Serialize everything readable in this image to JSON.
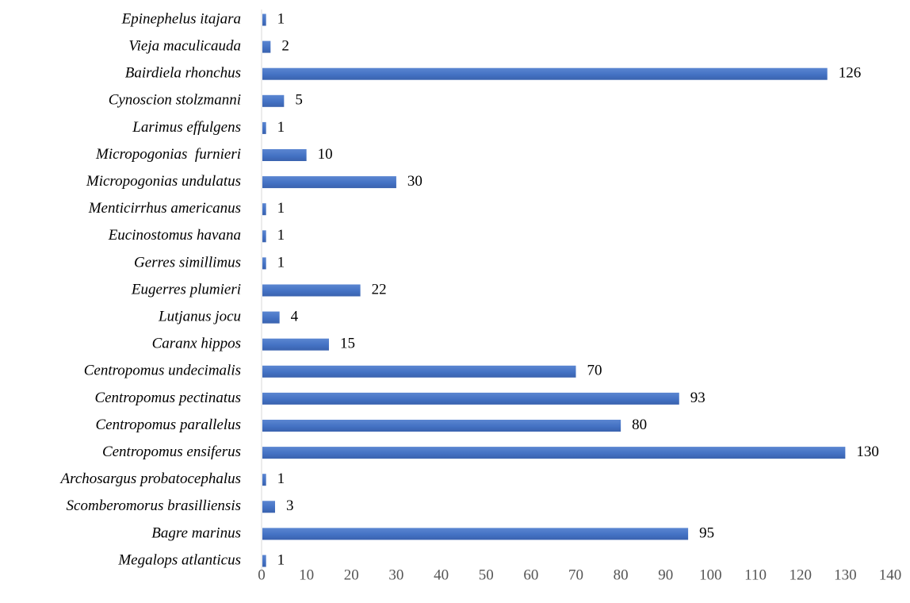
{
  "chart_data": {
    "type": "bar",
    "orientation": "horizontal",
    "title": "",
    "xlabel": "",
    "ylabel": "",
    "categories": [
      "Epinephelus itajara",
      "Vieja maculicauda",
      "Bairdiela rhonchus",
      "Cynoscion stolzmanni",
      "Larimus effulgens",
      "Micropogonias  furnieri",
      "Micropogonias undulatus",
      "Menticirrhus americanus",
      "Eucinostomus havana",
      "Gerres simillimus",
      "Eugerres plumieri",
      "Lutjanus jocu",
      "Caranx hippos",
      "Centropomus undecimalis",
      "Centropomus pectinatus",
      "Centropomus parallelus",
      "Centropomus ensiferus",
      "Archosargus probatocephalus",
      "Scomberomorus brasilliensis",
      "Bagre marinus",
      "Megalops atlanticus"
    ],
    "values": [
      1,
      2,
      126,
      5,
      1,
      10,
      30,
      1,
      1,
      1,
      22,
      4,
      15,
      70,
      93,
      80,
      130,
      1,
      3,
      95,
      1
    ],
    "xlim": [
      0,
      140
    ],
    "xticks": [
      0,
      10,
      20,
      30,
      40,
      50,
      60,
      70,
      80,
      90,
      100,
      110,
      120,
      130,
      140
    ],
    "grid": false,
    "legend": "none",
    "bar_color": "#4472C4",
    "axis_color": "#D9D9D9",
    "tick_label_color": "#555555"
  }
}
